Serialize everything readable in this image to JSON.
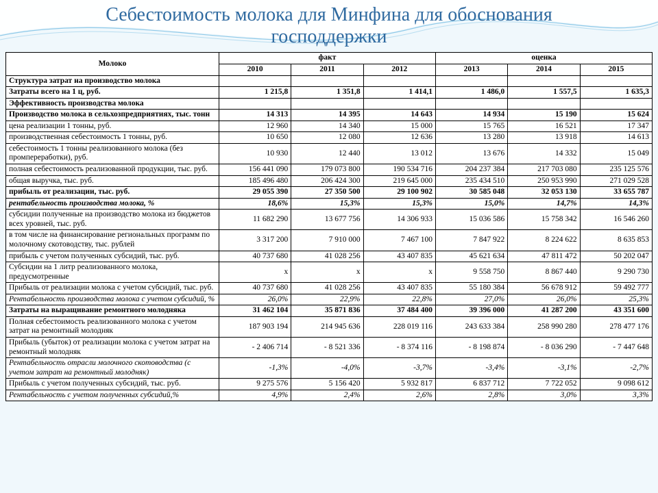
{
  "title_line1": "Себестоимость молока для Минфина для обоснования",
  "title_line2": "господдержки",
  "header": {
    "row_label": "Молоко",
    "group_fact": "факт",
    "group_est": "оценка",
    "years": [
      "2010",
      "2011",
      "2012",
      "2013",
      "2014",
      "2015"
    ]
  },
  "rows": [
    {
      "type": "section",
      "label": "Структура затрат на производство молока",
      "vals": [
        "",
        "",
        "",
        "",
        "",
        ""
      ]
    },
    {
      "type": "bold",
      "label": "Затраты всего на 1 ц, руб.",
      "vals": [
        "1 215,8",
        "1 351,8",
        "1 414,1",
        "1 486,0",
        "1 557,5",
        "1 635,3"
      ]
    },
    {
      "type": "section",
      "label": "Эффективность производства молока",
      "vals": [
        "",
        "",
        "",
        "",
        "",
        ""
      ]
    },
    {
      "type": "bold",
      "label": "Производство молока в сельхозпредприятиях, тыс. тонн",
      "vals": [
        "14 313",
        "14 395",
        "14 643",
        "14 934",
        "15 190",
        "15 624"
      ]
    },
    {
      "type": "plain",
      "label": "цена реализации 1 тонны, руб.",
      "vals": [
        "12 960",
        "14 340",
        "15 000",
        "15 765",
        "16 521",
        "17 347"
      ]
    },
    {
      "type": "plain",
      "label": "производственная себестоимость 1 тонны, руб.",
      "vals": [
        "10 650",
        "12 080",
        "12 636",
        "13 280",
        "13 918",
        "14 613"
      ]
    },
    {
      "type": "plain",
      "label": "себестоимость 1 тонны реализованного молока (без промпереработки), руб.",
      "vals": [
        "10 930",
        "12 440",
        "13 012",
        "13 676",
        "14 332",
        "15 049"
      ]
    },
    {
      "type": "plain",
      "label": "полная себестоимость реализованной продукции, тыс. руб.",
      "vals": [
        "156 441 090",
        "179 073 800",
        "190 534 716",
        "204 237 384",
        "217 703 080",
        "235 125 576"
      ]
    },
    {
      "type": "plain",
      "label": "общая выручка, тыс. руб.",
      "vals": [
        "185 496 480",
        "206 424 300",
        "219 645 000",
        "235 434 510",
        "250 953 990",
        "271 029 528"
      ]
    },
    {
      "type": "bold",
      "label": "прибыль от реализации, тыс. руб.",
      "vals": [
        "29 055 390",
        "27 350 500",
        "29 100 902",
        "30 585 048",
        "32 053 130",
        "33 655 787"
      ]
    },
    {
      "type": "bolditalic",
      "label": "рентабельность производства молока, %",
      "vals": [
        "18,6%",
        "15,3%",
        "15,3%",
        "15,0%",
        "14,7%",
        "14,3%"
      ]
    },
    {
      "type": "plain",
      "label": "субсидии полученные на производство молока из бюджетов всех уровней, тыс. руб.",
      "vals": [
        "11 682 290",
        "13 677 756",
        "14 306 933",
        "15 036 586",
        "15 758 342",
        "16 546 260"
      ]
    },
    {
      "type": "plain",
      "label": "в том числе на финансирование региональных программ по молочному скотоводству, тыс. рублей",
      "vals": [
        "3 317 200",
        "7 910 000",
        "7 467 100",
        "7 847 922",
        "8 224 622",
        "8 635 853"
      ]
    },
    {
      "type": "plain",
      "label": "прибыль с учетом полученных субсидий, тыс. руб.",
      "vals": [
        "40 737 680",
        "41 028 256",
        "43 407 835",
        "45 621 634",
        "47 811 472",
        "50 202 047"
      ]
    },
    {
      "type": "plain",
      "label": "Субсидии на 1 литр реализованного молока, предусмотренные",
      "vals": [
        "x",
        "x",
        "x",
        "9 558 750",
        "8 867 440",
        "9 290 730"
      ]
    },
    {
      "type": "plain",
      "label": "Прибыль от реализации молока с учетом субсидий, тыс. руб.",
      "vals": [
        "40 737 680",
        "41 028 256",
        "43 407 835",
        "55 180 384",
        "56 678 912",
        "59 492 777"
      ]
    },
    {
      "type": "italic",
      "label": "Рентабельность производства молока с учетом субсидий, %",
      "vals": [
        "26,0%",
        "22,9%",
        "22,8%",
        "27,0%",
        "26,0%",
        "25,3%"
      ]
    },
    {
      "type": "bold",
      "label": "Затраты на выращивание ремонтного молодняка",
      "vals": [
        "31 462 104",
        "35 871 836",
        "37 484 400",
        "39 396 000",
        "41 287 200",
        "43 351 600"
      ]
    },
    {
      "type": "plain",
      "label": "Полная себестоимость реализованного молока с учетом затрат на ремонтный молодняк",
      "vals": [
        "187 903 194",
        "214 945 636",
        "228 019 116",
        "243 633 384",
        "258 990 280",
        "278 477 176"
      ]
    },
    {
      "type": "plain",
      "label": "Прибыль (убыток) от реализации молока с учетом затрат на ремонтный молодняк",
      "vals": [
        "-   2 406 714",
        "-   8 521 336",
        "-   8 374 116",
        "-   8 198 874",
        "-   8 036 290",
        "-   7 447 648"
      ]
    },
    {
      "type": "italic",
      "label": "Рентабельность отрасли молочного скотоводства  (с учетом затрат на ремонтный молодняк)",
      "vals": [
        "-1,3%",
        "-4,0%",
        "-3,7%",
        "-3,4%",
        "-3,1%",
        "-2,7%"
      ]
    },
    {
      "type": "plain",
      "label": "Прибыль с учетом полученных субсидий, тыс. руб.",
      "vals": [
        "9 275 576",
        "5 156 420",
        "5 932 817",
        "6 837 712",
        "7 722 052",
        "9 098 612"
      ]
    },
    {
      "type": "italic",
      "label": "Рентабельность с учетом полученных субсидий,%",
      "vals": [
        "4,9%",
        "2,4%",
        "2,6%",
        "2,8%",
        "3,0%",
        "3,3%"
      ]
    }
  ]
}
